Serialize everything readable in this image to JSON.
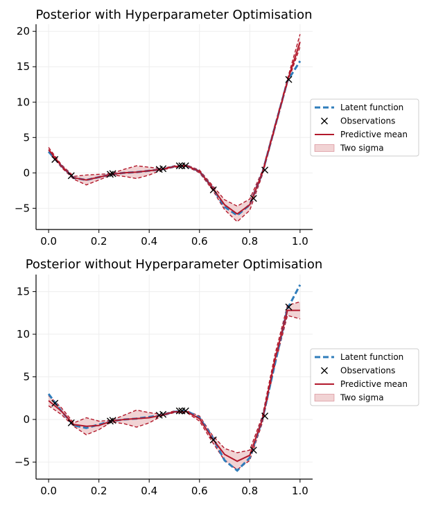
{
  "colors": {
    "latent": "#2f7dbb",
    "mean": "#b2182b",
    "band": "#e8b5b8",
    "grid": "#eeeeee",
    "legend_border": "#cccccc"
  },
  "legend": {
    "placement": "center-right",
    "entries": [
      {
        "key": "latent",
        "label": "Latent function",
        "style": "dashed-line"
      },
      {
        "key": "obs",
        "label": "Observations",
        "style": "x-marker"
      },
      {
        "key": "mean",
        "label": "Predictive mean",
        "style": "solid-line"
      },
      {
        "key": "band",
        "label": "Two sigma",
        "style": "filled-patch"
      }
    ]
  },
  "chart_data": [
    {
      "type": "line",
      "title": "Posterior with Hyperparameter Optimisation",
      "xlim": [
        -0.05,
        1.05
      ],
      "ylim": [
        -8,
        21
      ],
      "xticks": [
        0.0,
        0.2,
        0.4,
        0.6,
        0.8,
        1.0
      ],
      "xtick_labels": [
        "0.0",
        "0.2",
        "0.4",
        "0.6",
        "0.8",
        "1.0"
      ],
      "yticks": [
        -5,
        0,
        5,
        10,
        15,
        20
      ],
      "ytick_labels": [
        "−5",
        "0",
        "5",
        "10",
        "15",
        "20"
      ],
      "grid": true,
      "observations": {
        "x": [
          0.025,
          0.09,
          0.245,
          0.255,
          0.44,
          0.455,
          0.52,
          0.53,
          0.545,
          0.655,
          0.815,
          0.86,
          0.955
        ],
        "y": [
          1.9,
          -0.4,
          -0.2,
          -0.1,
          0.5,
          0.6,
          1.0,
          1.0,
          1.0,
          -2.4,
          -3.6,
          0.4,
          13.2
        ]
      },
      "series": [
        {
          "name": "Latent function",
          "x": [
            0.0,
            0.05,
            0.1,
            0.15,
            0.2,
            0.25,
            0.3,
            0.35,
            0.4,
            0.45,
            0.5,
            0.55,
            0.6,
            0.65,
            0.7,
            0.75,
            0.8,
            0.85,
            0.9,
            0.95,
            1.0
          ],
          "y": [
            3.0,
            1.0,
            -0.7,
            -1.0,
            -0.6,
            -0.2,
            0.0,
            0.1,
            0.3,
            0.5,
            0.9,
            1.0,
            0.2,
            -2.0,
            -4.8,
            -6.0,
            -4.5,
            0.0,
            6.5,
            13.0,
            15.8
          ]
        },
        {
          "name": "Predictive mean",
          "x": [
            0.0,
            0.05,
            0.1,
            0.15,
            0.2,
            0.25,
            0.3,
            0.35,
            0.4,
            0.45,
            0.5,
            0.55,
            0.6,
            0.65,
            0.7,
            0.75,
            0.8,
            0.85,
            0.9,
            0.95,
            1.0
          ],
          "y": [
            3.3,
            1.0,
            -0.7,
            -1.0,
            -0.6,
            -0.2,
            0.0,
            0.1,
            0.3,
            0.5,
            0.9,
            1.0,
            0.2,
            -2.0,
            -4.5,
            -5.8,
            -4.5,
            0.0,
            6.5,
            13.0,
            18.5
          ]
        }
      ],
      "band": {
        "name": "Two sigma",
        "x": [
          0.0,
          0.05,
          0.1,
          0.15,
          0.2,
          0.25,
          0.3,
          0.35,
          0.4,
          0.45,
          0.5,
          0.55,
          0.6,
          0.65,
          0.7,
          0.75,
          0.8,
          0.85,
          0.9,
          0.95,
          1.0
        ],
        "lower": [
          3.0,
          0.8,
          -0.9,
          -1.7,
          -1.0,
          -0.3,
          -0.5,
          -0.8,
          -0.3,
          0.4,
          0.8,
          0.9,
          0.0,
          -2.3,
          -5.2,
          -6.9,
          -5.3,
          -0.3,
          6.2,
          12.7,
          17.8
        ],
        "upper": [
          3.6,
          1.2,
          -0.5,
          -0.3,
          -0.2,
          -0.1,
          0.5,
          1.0,
          0.8,
          0.6,
          1.0,
          1.1,
          0.4,
          -1.7,
          -3.8,
          -4.7,
          -3.7,
          0.3,
          6.8,
          13.3,
          19.6
        ]
      }
    },
    {
      "type": "line",
      "title": "Posterior without Hyperparameter Optimisation",
      "xlim": [
        -0.05,
        1.05
      ],
      "ylim": [
        -7,
        17
      ],
      "xticks": [
        0.0,
        0.2,
        0.4,
        0.6,
        0.8,
        1.0
      ],
      "xtick_labels": [
        "0.0",
        "0.2",
        "0.4",
        "0.6",
        "0.8",
        "1.0"
      ],
      "yticks": [
        -5,
        0,
        5,
        10,
        15
      ],
      "ytick_labels": [
        "−5",
        "0",
        "5",
        "10",
        "15"
      ],
      "grid": true,
      "observations": {
        "x": [
          0.025,
          0.09,
          0.245,
          0.255,
          0.44,
          0.455,
          0.52,
          0.53,
          0.545,
          0.655,
          0.815,
          0.86,
          0.955
        ],
        "y": [
          1.9,
          -0.4,
          -0.2,
          -0.1,
          0.5,
          0.6,
          1.0,
          1.0,
          1.0,
          -2.4,
          -3.6,
          0.4,
          13.2
        ]
      },
      "series": [
        {
          "name": "Latent function",
          "x": [
            0.0,
            0.05,
            0.1,
            0.15,
            0.2,
            0.25,
            0.3,
            0.35,
            0.4,
            0.45,
            0.5,
            0.55,
            0.6,
            0.65,
            0.7,
            0.75,
            0.8,
            0.85,
            0.9,
            0.95,
            1.0
          ],
          "y": [
            3.0,
            1.0,
            -0.7,
            -1.0,
            -0.6,
            -0.2,
            0.0,
            0.1,
            0.3,
            0.5,
            0.9,
            1.0,
            0.2,
            -2.0,
            -4.8,
            -6.0,
            -4.5,
            0.0,
            6.5,
            13.0,
            15.8
          ]
        },
        {
          "name": "Predictive mean",
          "x": [
            0.0,
            0.05,
            0.1,
            0.15,
            0.2,
            0.25,
            0.3,
            0.35,
            0.4,
            0.45,
            0.5,
            0.55,
            0.6,
            0.65,
            0.7,
            0.75,
            0.8,
            0.85,
            0.9,
            0.95,
            1.0
          ],
          "y": [
            2.2,
            1.0,
            -0.6,
            -0.8,
            -0.7,
            -0.2,
            0.0,
            0.1,
            0.2,
            0.5,
            0.9,
            0.9,
            0.1,
            -2.2,
            -4.1,
            -4.9,
            -4.2,
            0.0,
            7.0,
            12.8,
            12.8
          ]
        }
      ],
      "band": {
        "name": "Two sigma",
        "x": [
          0.0,
          0.05,
          0.1,
          0.15,
          0.2,
          0.25,
          0.3,
          0.35,
          0.4,
          0.45,
          0.5,
          0.55,
          0.6,
          0.65,
          0.7,
          0.75,
          0.8,
          0.85,
          0.9,
          0.95,
          1.0
        ],
        "lower": [
          1.6,
          0.6,
          -0.8,
          -1.8,
          -1.2,
          -0.3,
          -0.5,
          -0.9,
          -0.4,
          0.4,
          0.8,
          0.8,
          -0.2,
          -2.6,
          -4.8,
          -5.9,
          -4.8,
          -0.4,
          6.4,
          12.2,
          11.8
        ],
        "upper": [
          2.8,
          1.4,
          -0.4,
          0.2,
          -0.2,
          -0.1,
          0.5,
          1.1,
          0.8,
          0.6,
          1.0,
          1.0,
          0.4,
          -1.8,
          -3.4,
          -3.9,
          -3.6,
          0.4,
          7.6,
          13.4,
          13.8
        ]
      }
    }
  ]
}
